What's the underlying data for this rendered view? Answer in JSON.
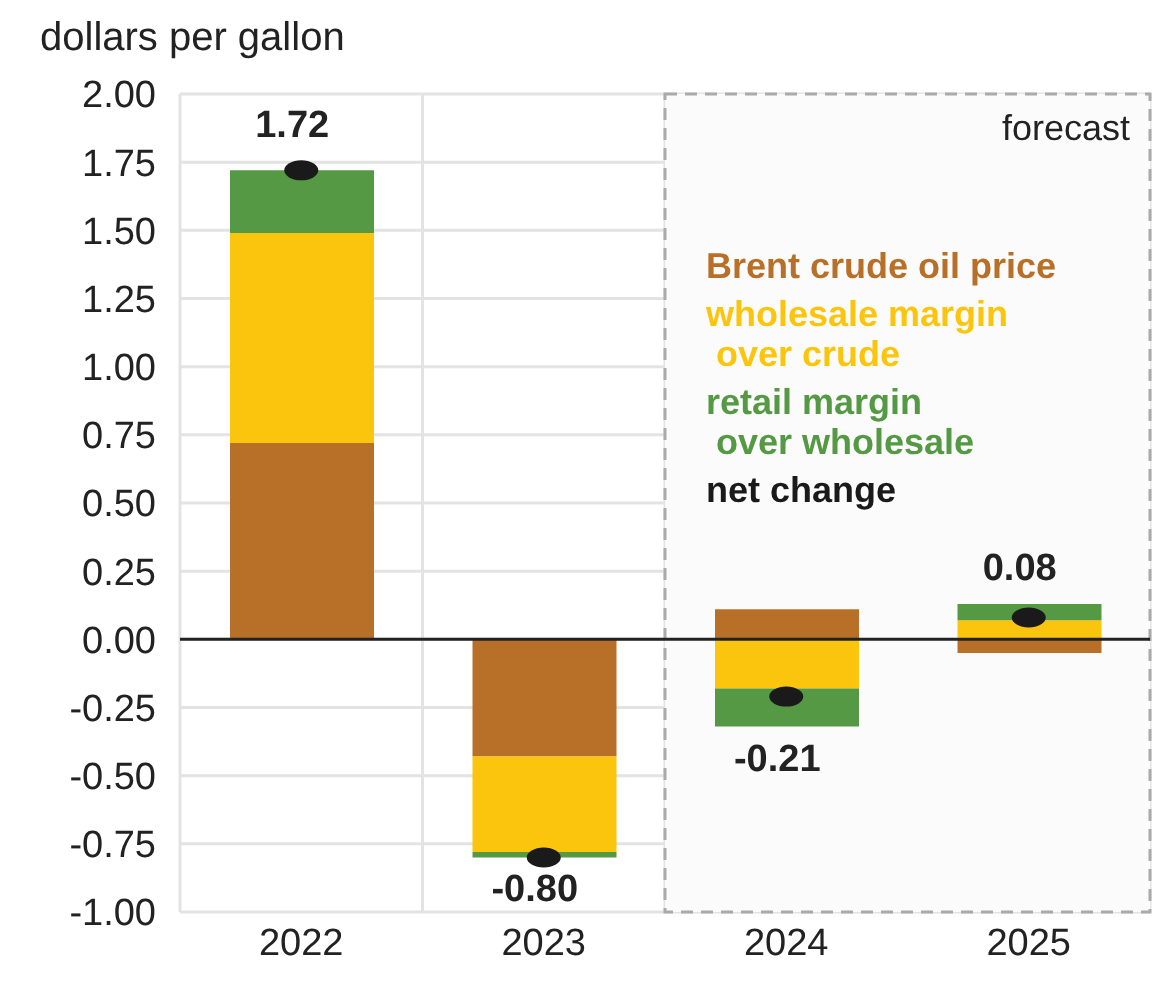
{
  "chart_data": {
    "type": "bar",
    "ylabel": "dollars per gallon",
    "categories": [
      "2022",
      "2023",
      "2024",
      "2025"
    ],
    "stacked": true,
    "series": [
      {
        "name": "Brent crude oil price",
        "color": "#b87029",
        "values": [
          0.72,
          -0.43,
          0.11,
          -0.05
        ]
      },
      {
        "name": "wholesale margin\n over crude",
        "color": "#fcc50d",
        "values": [
          0.77,
          -0.35,
          -0.18,
          0.07
        ]
      },
      {
        "name": "retail margin\n over wholesale",
        "color": "#559944",
        "values": [
          0.23,
          -0.02,
          -0.14,
          0.06
        ]
      },
      {
        "name": "net change",
        "type": "scatter",
        "color": "#1a1a1a",
        "marker": "circle",
        "values": [
          1.72,
          -0.8,
          -0.21,
          0.08
        ],
        "value_labels": [
          "1.72",
          "-0.80",
          "-0.21",
          "0.08"
        ]
      }
    ],
    "ylim": [
      -1,
      2
    ],
    "yticks": [
      {
        "value": -1,
        "label": "-1.00"
      },
      {
        "value": -0.75,
        "label": "-0.75"
      },
      {
        "value": -0.5,
        "label": "-0.50"
      },
      {
        "value": -0.25,
        "label": "-0.25"
      },
      {
        "value": 0,
        "label": "0.00"
      },
      {
        "value": 0.25,
        "label": "0.25"
      },
      {
        "value": 0.5,
        "label": "0.50"
      },
      {
        "value": 0.75,
        "label": "0.75"
      },
      {
        "value": 1,
        "label": "1.00"
      },
      {
        "value": 1.25,
        "label": "1.25"
      },
      {
        "value": 1.5,
        "label": "1.50"
      },
      {
        "value": 1.75,
        "label": "1.75"
      },
      {
        "value": 2,
        "label": "2.00"
      }
    ],
    "bands": [
      {
        "axis": "x",
        "from": "2024",
        "to": "2025",
        "label": "forecast",
        "color": "#fbfbfb"
      }
    ],
    "grid": true,
    "legend": "right"
  }
}
